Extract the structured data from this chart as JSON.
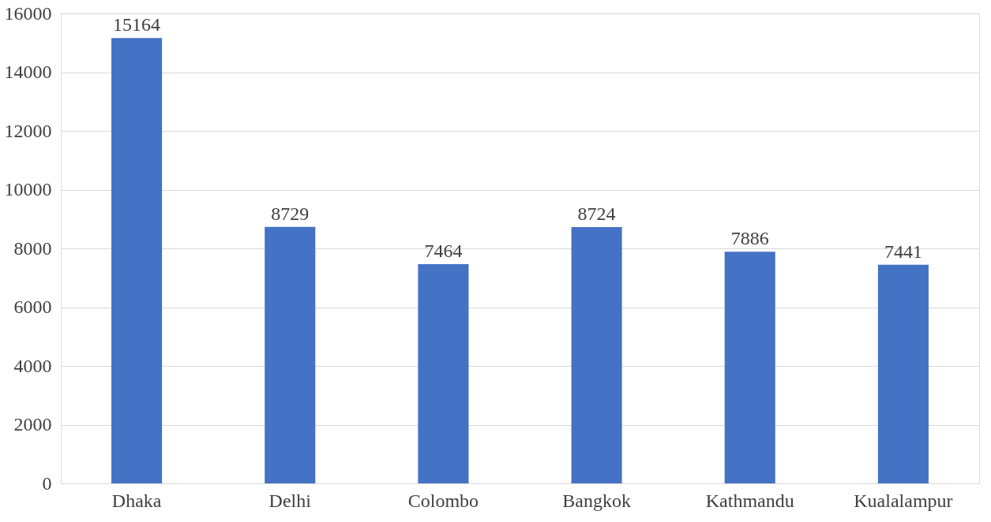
{
  "chart_data": {
    "type": "bar",
    "categories": [
      "Dhaka",
      "Delhi",
      "Colombo",
      "Bangkok",
      "Kathmandu",
      "Kualalampur"
    ],
    "values": [
      15164,
      8729,
      7464,
      8724,
      7886,
      7441
    ],
    "color": "#4472c4",
    "ylim": [
      0,
      16000
    ],
    "yticks": [
      0,
      2000,
      4000,
      6000,
      8000,
      10000,
      12000,
      14000,
      16000
    ],
    "grid": "y",
    "data_labels": true
  }
}
